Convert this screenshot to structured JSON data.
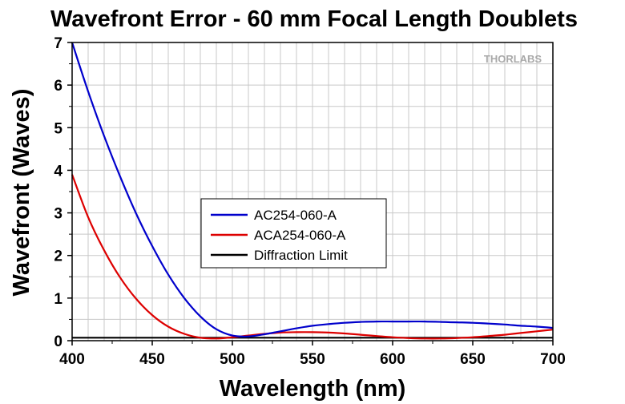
{
  "chart_data": {
    "type": "line",
    "title": "Wavefront Error - 60 mm Focal Length Doublets",
    "xlabel": "Wavelength (nm)",
    "ylabel": "Wavefront (Waves)",
    "xlim": [
      400,
      700
    ],
    "ylim": [
      0,
      7
    ],
    "x_ticks": [
      400,
      450,
      500,
      550,
      600,
      650,
      700
    ],
    "y_ticks": [
      0,
      1,
      2,
      3,
      4,
      5,
      6,
      7
    ],
    "grid": true,
    "legend_position": "center",
    "series": [
      {
        "name": "AC254-060-A",
        "color": "#0000cc",
        "x": [
          400,
          410,
          420,
          430,
          440,
          450,
          460,
          470,
          480,
          490,
          500,
          510,
          520,
          530,
          540,
          550,
          560,
          570,
          580,
          590,
          600,
          610,
          620,
          630,
          640,
          650,
          660,
          670,
          680,
          690,
          700
        ],
        "y": [
          7.0,
          5.85,
          4.8,
          3.85,
          2.98,
          2.22,
          1.55,
          1.0,
          0.57,
          0.27,
          0.12,
          0.1,
          0.15,
          0.22,
          0.29,
          0.35,
          0.39,
          0.42,
          0.44,
          0.45,
          0.45,
          0.45,
          0.45,
          0.44,
          0.43,
          0.42,
          0.4,
          0.38,
          0.35,
          0.33,
          0.3
        ]
      },
      {
        "name": "ACA254-060-A",
        "color": "#dd0000",
        "x": [
          400,
          410,
          420,
          430,
          440,
          450,
          460,
          470,
          480,
          490,
          500,
          510,
          520,
          530,
          540,
          550,
          560,
          570,
          580,
          590,
          600,
          610,
          620,
          630,
          640,
          650,
          660,
          670,
          680,
          690,
          700
        ],
        "y": [
          3.9,
          2.9,
          2.12,
          1.48,
          0.98,
          0.6,
          0.33,
          0.16,
          0.07,
          0.05,
          0.08,
          0.12,
          0.16,
          0.19,
          0.2,
          0.2,
          0.19,
          0.17,
          0.14,
          0.11,
          0.08,
          0.06,
          0.05,
          0.05,
          0.06,
          0.08,
          0.11,
          0.14,
          0.18,
          0.22,
          0.26
        ]
      },
      {
        "name": "Diffraction Limit",
        "color": "#000000",
        "x": [
          400,
          700
        ],
        "y": [
          0.07,
          0.07
        ]
      }
    ]
  },
  "logo": {
    "text": "THORLABS"
  }
}
